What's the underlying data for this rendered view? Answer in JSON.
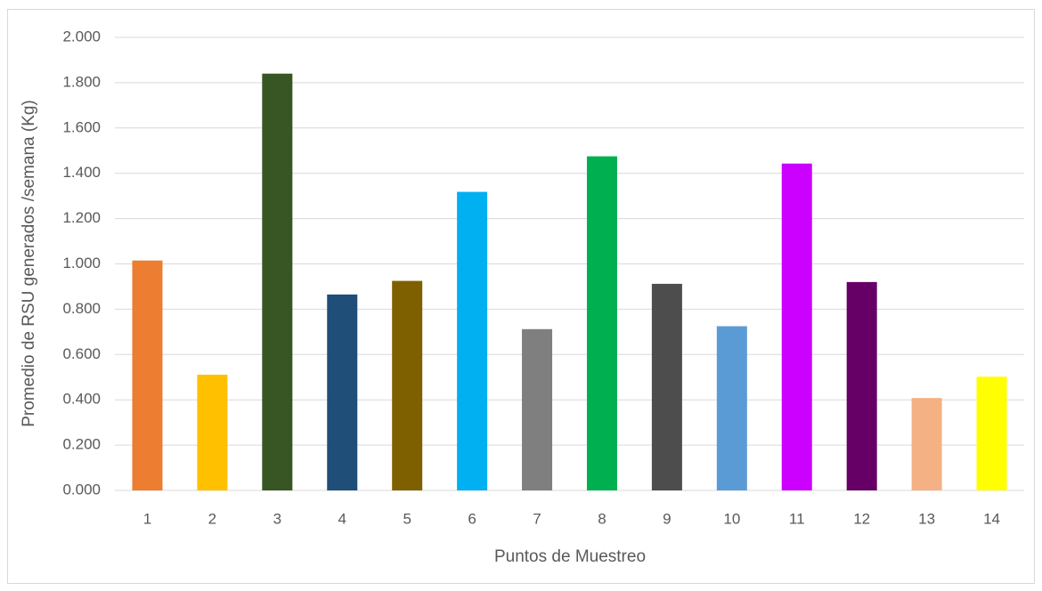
{
  "chart_data": {
    "type": "bar",
    "x_label": "Puntos de Muestreo",
    "y_label": "Promedio de RSU generados /semana (Kg)",
    "categories": [
      "1",
      "2",
      "3",
      "4",
      "5",
      "6",
      "7",
      "8",
      "9",
      "10",
      "11",
      "12",
      "13",
      "14"
    ],
    "values": [
      1.015,
      0.511,
      1.84,
      0.865,
      0.925,
      1.318,
      0.712,
      1.475,
      0.912,
      0.725,
      1.443,
      0.92,
      0.408,
      0.502
    ],
    "colors": [
      "#ed7d31",
      "#ffc000",
      "#375623",
      "#1f4e79",
      "#7f6000",
      "#00b0f0",
      "#7f7f7f",
      "#00b050",
      "#4d4d4d",
      "#5b9bd5",
      "#cc00ff",
      "#660066",
      "#f4b183",
      "#ffff00"
    ],
    "ylim": [
      0,
      2
    ],
    "yticks": [
      {
        "value": 0,
        "label": "0.000"
      },
      {
        "value": 0.2,
        "label": "0.200"
      },
      {
        "value": 0.4,
        "label": "0.400"
      },
      {
        "value": 0.6,
        "label": "0.600"
      },
      {
        "value": 0.8,
        "label": "0.800"
      },
      {
        "value": 1.0,
        "label": "1.000"
      },
      {
        "value": 1.2,
        "label": "1.200"
      },
      {
        "value": 1.4,
        "label": "1.400"
      },
      {
        "value": 1.6,
        "label": "1.600"
      },
      {
        "value": 1.8,
        "label": "1.800"
      },
      {
        "value": 2.0,
        "label": "2.000"
      }
    ],
    "grid": true
  }
}
